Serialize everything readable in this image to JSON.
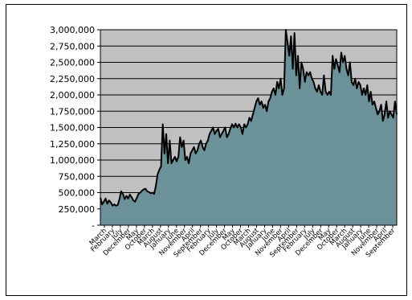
{
  "chart_data": {
    "type": "area",
    "title": "",
    "xlabel": "",
    "ylabel": "",
    "ylim": [
      0,
      3000000
    ],
    "y_ticks": [
      0,
      250000,
      500000,
      750000,
      1000000,
      1250000,
      1500000,
      1750000,
      2000000,
      2250000,
      2500000,
      2750000,
      3000000
    ],
    "y_tick_labels": [
      "-",
      "250,000",
      "500,000",
      "750,000",
      "1,000,000",
      "1,250,000",
      "1,500,000",
      "1,750,000",
      "2,000,000",
      "2,250,000",
      "2,500,000",
      "2,750,000",
      "3,000,000"
    ],
    "x_tick_labels": [
      "March",
      "February",
      "July",
      "December",
      "May",
      "October",
      "March",
      "August",
      "January",
      "June",
      "November",
      "April",
      "September",
      "February",
      "July",
      "December",
      "May",
      "October",
      "March",
      "August",
      "January",
      "June",
      "November",
      "April",
      "September",
      "February",
      "July",
      "December",
      "May",
      "October",
      "March",
      "August",
      "January",
      "June",
      "November",
      "April",
      "September"
    ],
    "grid": true,
    "legend": "none",
    "colors": {
      "plot_bg": "#c0c0c0",
      "area_fill": "#6b9299",
      "line": "#000000",
      "grid": "#000000"
    },
    "series": [
      {
        "values": [
          420000,
          320000,
          360000,
          410000,
          330000,
          380000,
          350000,
          300000,
          320000,
          300000,
          310000,
          400000,
          520000,
          480000,
          400000,
          450000,
          410000,
          470000,
          430000,
          380000,
          360000,
          420000,
          480000,
          500000,
          530000,
          550000,
          560000,
          520000,
          510000,
          490000,
          500000,
          480000,
          600000,
          780000,
          850000,
          900000,
          1550000,
          1100000,
          1400000,
          950000,
          1300000,
          950000,
          1000000,
          1050000,
          980000,
          1050000,
          1350000,
          1200000,
          1300000,
          1000000,
          1050000,
          950000,
          1100000,
          1150000,
          1200000,
          1100000,
          1150000,
          1250000,
          1300000,
          1200000,
          1150000,
          1250000,
          1300000,
          1400000,
          1450000,
          1500000,
          1400000,
          1450000,
          1480000,
          1350000,
          1400000,
          1450000,
          1500000,
          1350000,
          1400000,
          1480000,
          1550000,
          1500000,
          1560000,
          1500000,
          1550000,
          1500000,
          1400000,
          1550000,
          1500000,
          1550000,
          1650000,
          1600000,
          1700000,
          1800000,
          1900000,
          1950000,
          1850000,
          1900000,
          1800000,
          1850000,
          1750000,
          1900000,
          1950000,
          2050000,
          2100000,
          2000000,
          2200000,
          2100000,
          2250000,
          2000000,
          2100000,
          3000000,
          2800000,
          2600000,
          2900000,
          2400000,
          2950000,
          2300000,
          2600000,
          2100000,
          2500000,
          2400000,
          2200000,
          2350000,
          2300000,
          2350000,
          2250000,
          2200000,
          2100000,
          2050000,
          2150000,
          2050000,
          2000000,
          2300000,
          2050000,
          2000000,
          2050000,
          2000000,
          2600000,
          2400000,
          2550000,
          2450000,
          2350000,
          2650000,
          2500000,
          2600000,
          2400000,
          2300000,
          2500000,
          2200000,
          2150000,
          2250000,
          2100000,
          2200000,
          2150000,
          2000000,
          2100000,
          2000000,
          2150000,
          1900000,
          2050000,
          1850000,
          1900000,
          1800000,
          1700000,
          1750000,
          1850000,
          1600000,
          1700000,
          1900000,
          1650000,
          1750000,
          1700000,
          1650000,
          1900000,
          1700000
        ]
      }
    ]
  }
}
